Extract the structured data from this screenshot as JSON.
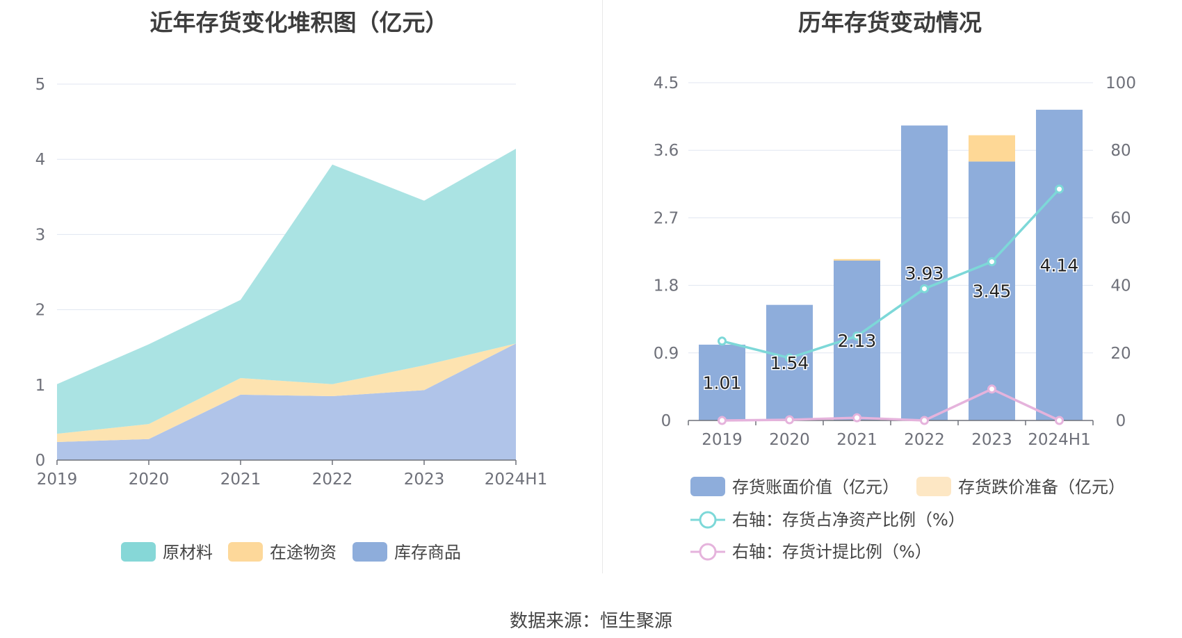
{
  "left_chart": {
    "title": "近年存货变化堆积图（亿元）"
  },
  "right_chart": {
    "title": "历年存货变动情况"
  },
  "source_text": "数据来源：恒生聚源",
  "colors": {
    "raw_material": "#aae3e3",
    "in_transit": "#fde3b0",
    "inventory_goods": "#b0c4e9",
    "bar_book_value": "#8eaddb",
    "bar_impairment": "#fed896",
    "line_ratio_net_assets": "#7dd8d8",
    "line_provision_ratio": "#e5b3dc",
    "legend_raw": "#86d7d7",
    "legend_transit": "#fdd89a",
    "legend_goods": "#8eaddb",
    "legend_impairment": "#fde7c4"
  },
  "chart_data": [
    {
      "type": "area",
      "stacked": true,
      "title": "近年存货变化堆积图（亿元）",
      "categories": [
        "2019",
        "2020",
        "2021",
        "2022",
        "2023",
        "2024H1"
      ],
      "ylim": [
        0,
        5
      ],
      "yticks": [
        "0",
        "1",
        "2",
        "3",
        "4",
        "5"
      ],
      "series": [
        {
          "name": "库存商品",
          "values": [
            0.24,
            0.28,
            0.87,
            0.85,
            0.93,
            1.55
          ]
        },
        {
          "name": "在途物资",
          "values": [
            0.11,
            0.2,
            0.22,
            0.16,
            0.33,
            0.0
          ]
        },
        {
          "name": "原材料",
          "values": [
            0.66,
            1.06,
            1.04,
            2.92,
            2.19,
            2.59
          ]
        }
      ],
      "legend": [
        "原材料",
        "在途物资",
        "库存商品"
      ]
    },
    {
      "type": "bar",
      "stacked": true,
      "title": "历年存货变动情况",
      "categories": [
        "2019",
        "2020",
        "2021",
        "2022",
        "2023",
        "2024H1"
      ],
      "ylim_left": [
        0,
        4.5
      ],
      "yticks_left": [
        "0",
        "0.9",
        "1.8",
        "2.7",
        "3.6",
        "4.5"
      ],
      "ylim_right": [
        0,
        100
      ],
      "yticks_right": [
        "0",
        "20",
        "40",
        "60",
        "80",
        "100"
      ],
      "series": [
        {
          "name": "存货账面价值（亿元）",
          "values": [
            1.01,
            1.54,
            2.13,
            3.93,
            3.45,
            4.14
          ],
          "labels": [
            "1.01",
            "1.54",
            "2.13",
            "3.93",
            "3.45",
            "4.14"
          ]
        },
        {
          "name": "存货跌价准备（亿元）",
          "values": [
            0.0,
            0.0,
            0.02,
            0.0,
            0.35,
            0.0
          ]
        },
        {
          "name": "右轴：存货占净资产比例（%）",
          "type": "line",
          "axis": "right",
          "values": [
            23.5,
            18.5,
            25.0,
            39.0,
            47.0,
            68.5
          ]
        },
        {
          "name": "右轴：存货计提比例（%）",
          "type": "line",
          "axis": "right",
          "values": [
            0.0,
            0.2,
            0.8,
            0.0,
            9.3,
            0.0
          ]
        }
      ],
      "legend": [
        "存货账面价值（亿元）",
        "存货跌价准备（亿元）",
        "右轴：存货占净资产比例（%）",
        "右轴：存货计提比例（%）"
      ]
    }
  ]
}
